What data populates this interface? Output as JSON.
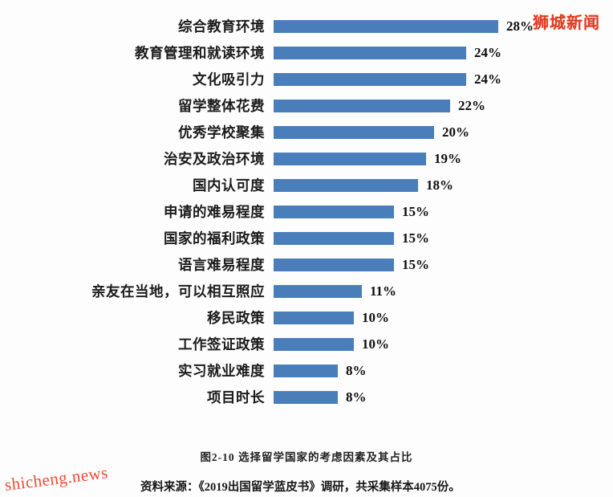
{
  "watermarks": {
    "top_right": "狮城新闻",
    "bottom_left": "shicheng.news"
  },
  "caption": "图2-10  选择留学国家的考虑因素及其占比",
  "source_note": "资料来源：《2019出国留学蓝皮书》调研，共采集样本4075份。",
  "chart_data": {
    "type": "bar",
    "orientation": "horizontal",
    "title": "选择留学国家的考虑因素及其占比",
    "bar_color": "#4a7eba",
    "xlim": [
      0,
      30
    ],
    "grid": false,
    "legend": "none",
    "categories": [
      "综合教育环境",
      "教育管理和就读环境",
      "文化吸引力",
      "留学整体花费",
      "优秀学校聚集",
      "治安及政治环境",
      "国内认可度",
      "申请的难易程度",
      "国家的福利政策",
      "语言难易程度",
      "亲友在当地，可以相互照应",
      "移民政策",
      "工作签证政策",
      "实习就业难度",
      "项目时长"
    ],
    "values": [
      28,
      24,
      24,
      22,
      20,
      19,
      18,
      15,
      15,
      15,
      11,
      10,
      10,
      8,
      8
    ],
    "value_labels": [
      "28%",
      "24%",
      "24%",
      "22%",
      "20%",
      "19%",
      "18%",
      "15%",
      "15%",
      "15%",
      "11%",
      "10%",
      "10%",
      "8%",
      "8%"
    ]
  }
}
